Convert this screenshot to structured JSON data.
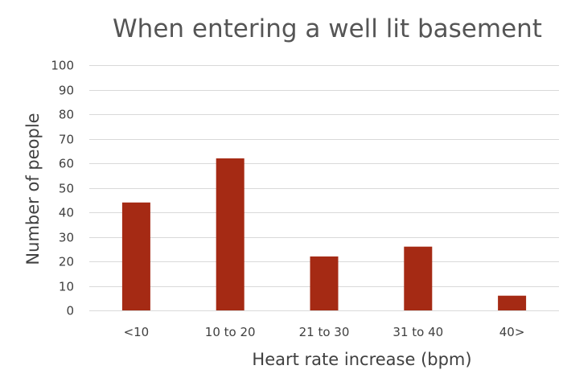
{
  "chart_data": {
    "type": "bar",
    "title": "When entering a well lit basement",
    "xlabel": "Heart rate increase (bpm)",
    "ylabel": "Number of people",
    "categories": [
      "<10",
      "10 to 20",
      "21 to 30",
      "31 to 40",
      "40>"
    ],
    "values": [
      44,
      62,
      22,
      26,
      6
    ],
    "ylim": [
      0,
      100
    ],
    "yticks": [
      0,
      10,
      20,
      30,
      40,
      50,
      60,
      70,
      80,
      90,
      100
    ],
    "grid": true,
    "legend": "none",
    "bar_color": "#a52a14",
    "grid_color": "#d9d9d9"
  }
}
